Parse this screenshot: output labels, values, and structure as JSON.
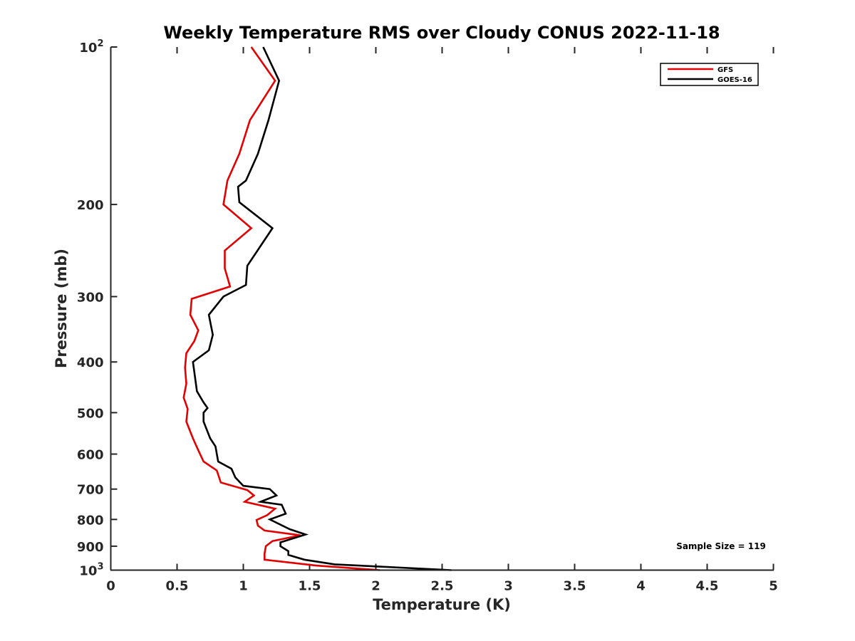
{
  "chart_data": {
    "type": "line",
    "title": "Weekly Temperature RMS over Cloudy CONUS 2022-11-18",
    "xlabel": "Temperature (K)",
    "ylabel": "Pressure (mb)",
    "xlim": [
      0,
      5
    ],
    "ylim": [
      100,
      1000
    ],
    "y_scale": "log",
    "y_reversed": true,
    "grid": false,
    "legend_position": "top-right",
    "x_ticks": [
      {
        "value": 0,
        "label": "0"
      },
      {
        "value": 0.5,
        "label": "0.5"
      },
      {
        "value": 1,
        "label": "1"
      },
      {
        "value": 1.5,
        "label": "1.5"
      },
      {
        "value": 2,
        "label": "2"
      },
      {
        "value": 2.5,
        "label": "2.5"
      },
      {
        "value": 3,
        "label": "3"
      },
      {
        "value": 3.5,
        "label": "3.5"
      },
      {
        "value": 4,
        "label": "4"
      },
      {
        "value": 4.5,
        "label": "4.5"
      },
      {
        "value": 5,
        "label": "5"
      }
    ],
    "y_ticks": [
      {
        "value": 100,
        "label": "10",
        "sup": "2"
      },
      {
        "value": 200,
        "label": "200"
      },
      {
        "value": 300,
        "label": "300"
      },
      {
        "value": 400,
        "label": "400"
      },
      {
        "value": 500,
        "label": "500"
      },
      {
        "value": 600,
        "label": "600"
      },
      {
        "value": 700,
        "label": "700"
      },
      {
        "value": 800,
        "label": "800"
      },
      {
        "value": 900,
        "label": "900"
      },
      {
        "value": 1000,
        "label": "10",
        "sup": "3"
      }
    ],
    "annotation": "Sample Size = 119",
    "series": [
      {
        "name": "GFS",
        "color": "#e00000",
        "points": [
          {
            "x": 1.06,
            "y": 100
          },
          {
            "x": 1.24,
            "y": 116
          },
          {
            "x": 1.05,
            "y": 138
          },
          {
            "x": 0.97,
            "y": 160
          },
          {
            "x": 0.88,
            "y": 180
          },
          {
            "x": 0.85,
            "y": 200
          },
          {
            "x": 1.06,
            "y": 222
          },
          {
            "x": 0.86,
            "y": 245
          },
          {
            "x": 0.86,
            "y": 265
          },
          {
            "x": 0.9,
            "y": 287
          },
          {
            "x": 0.61,
            "y": 303
          },
          {
            "x": 0.6,
            "y": 325
          },
          {
            "x": 0.66,
            "y": 348
          },
          {
            "x": 0.63,
            "y": 365
          },
          {
            "x": 0.57,
            "y": 385
          },
          {
            "x": 0.56,
            "y": 410
          },
          {
            "x": 0.57,
            "y": 440
          },
          {
            "x": 0.55,
            "y": 468
          },
          {
            "x": 0.58,
            "y": 492
          },
          {
            "x": 0.57,
            "y": 520
          },
          {
            "x": 0.62,
            "y": 560
          },
          {
            "x": 0.66,
            "y": 590
          },
          {
            "x": 0.7,
            "y": 620
          },
          {
            "x": 0.8,
            "y": 645
          },
          {
            "x": 0.83,
            "y": 680
          },
          {
            "x": 1.03,
            "y": 703
          },
          {
            "x": 1.08,
            "y": 720
          },
          {
            "x": 1.01,
            "y": 740
          },
          {
            "x": 1.24,
            "y": 763
          },
          {
            "x": 1.18,
            "y": 785
          },
          {
            "x": 1.1,
            "y": 802
          },
          {
            "x": 1.11,
            "y": 822
          },
          {
            "x": 1.16,
            "y": 840
          },
          {
            "x": 1.43,
            "y": 858
          },
          {
            "x": 1.22,
            "y": 880
          },
          {
            "x": 1.17,
            "y": 900
          },
          {
            "x": 1.16,
            "y": 930
          },
          {
            "x": 1.16,
            "y": 955
          },
          {
            "x": 1.55,
            "y": 980
          },
          {
            "x": 2.03,
            "y": 1000
          }
        ]
      },
      {
        "name": "GOES-16",
        "color": "#000000",
        "points": [
          {
            "x": 1.15,
            "y": 100
          },
          {
            "x": 1.27,
            "y": 116
          },
          {
            "x": 1.19,
            "y": 138
          },
          {
            "x": 1.11,
            "y": 160
          },
          {
            "x": 1.02,
            "y": 180
          },
          {
            "x": 0.96,
            "y": 185
          },
          {
            "x": 0.97,
            "y": 198
          },
          {
            "x": 1.22,
            "y": 222
          },
          {
            "x": 1.03,
            "y": 262
          },
          {
            "x": 1.02,
            "y": 285
          },
          {
            "x": 0.85,
            "y": 300
          },
          {
            "x": 0.74,
            "y": 325
          },
          {
            "x": 0.77,
            "y": 355
          },
          {
            "x": 0.74,
            "y": 380
          },
          {
            "x": 0.62,
            "y": 400
          },
          {
            "x": 0.65,
            "y": 455
          },
          {
            "x": 0.7,
            "y": 478
          },
          {
            "x": 0.73,
            "y": 490
          },
          {
            "x": 0.7,
            "y": 500
          },
          {
            "x": 0.7,
            "y": 520
          },
          {
            "x": 0.75,
            "y": 560
          },
          {
            "x": 0.79,
            "y": 580
          },
          {
            "x": 0.81,
            "y": 620
          },
          {
            "x": 0.91,
            "y": 640
          },
          {
            "x": 0.94,
            "y": 665
          },
          {
            "x": 1.0,
            "y": 690
          },
          {
            "x": 1.2,
            "y": 700
          },
          {
            "x": 1.25,
            "y": 720
          },
          {
            "x": 1.13,
            "y": 740
          },
          {
            "x": 1.29,
            "y": 750
          },
          {
            "x": 1.32,
            "y": 780
          },
          {
            "x": 1.2,
            "y": 800
          },
          {
            "x": 1.35,
            "y": 835
          },
          {
            "x": 1.47,
            "y": 855
          },
          {
            "x": 1.28,
            "y": 885
          },
          {
            "x": 1.28,
            "y": 900
          },
          {
            "x": 1.34,
            "y": 920
          },
          {
            "x": 1.34,
            "y": 935
          },
          {
            "x": 1.46,
            "y": 955
          },
          {
            "x": 1.69,
            "y": 975
          },
          {
            "x": 2.57,
            "y": 1000
          }
        ]
      }
    ]
  }
}
